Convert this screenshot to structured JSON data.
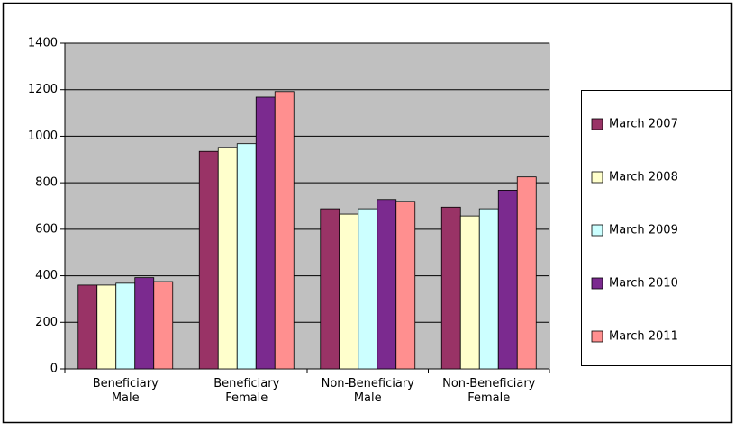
{
  "chart_data": {
    "type": "bar",
    "categories": [
      "Beneficiary\nMale",
      "Beneficiary\nFemale",
      "Non-Beneficiary\nMale",
      "Non-Beneficiary\nFemale"
    ],
    "series": [
      {
        "name": "March 2007",
        "color": "#993366",
        "values": [
          360,
          935,
          688,
          695
        ]
      },
      {
        "name": "March 2008",
        "color": "#ffffcc",
        "values": [
          360,
          952,
          665,
          657
        ]
      },
      {
        "name": "March 2009",
        "color": "#ccffff",
        "values": [
          368,
          968,
          688,
          688
        ]
      },
      {
        "name": "March 2010",
        "color": "#7b2a8f",
        "values": [
          392,
          1168,
          728,
          768
        ]
      },
      {
        "name": "March 2011",
        "color": "#ff8f8f",
        "values": [
          375,
          1192,
          720,
          825
        ]
      }
    ],
    "ylim": [
      0,
      1400
    ],
    "yticks": [
      0,
      200,
      400,
      600,
      800,
      1000,
      1200,
      1400
    ],
    "grid": true,
    "legend": "right"
  }
}
